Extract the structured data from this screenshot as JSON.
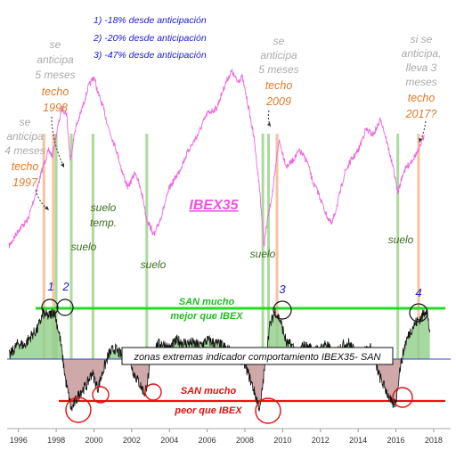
{
  "chart_data": {
    "type": "line",
    "x_axis": {
      "ticks": [
        "1996",
        "1998",
        "2000",
        "2002",
        "2004",
        "2006",
        "2008",
        "2010",
        "2012",
        "2014",
        "2016",
        "2018"
      ],
      "range": [
        1995.4,
        2018.9
      ]
    },
    "notes": [
      "1) -18% desde anticipación",
      "2) -20% desde anticipación",
      "3) -47% desde anticipación"
    ],
    "index_label": "IBEX35",
    "series": [
      {
        "name": "IBEX35",
        "color": "#ee66dd",
        "x": [
          1995.5,
          1996.0,
          1996.5,
          1997.0,
          1997.3,
          1997.6,
          1997.8,
          1998.0,
          1998.3,
          1998.55,
          1998.75,
          1999.0,
          1999.3,
          1999.7,
          2000.0,
          2000.2,
          2000.5,
          2000.8,
          2001.2,
          2001.5,
          2001.8,
          2002.2,
          2002.6,
          2002.8,
          2003.2,
          2003.6,
          2004.0,
          2004.5,
          2005.0,
          2005.5,
          2006.0,
          2006.5,
          2007.0,
          2007.3,
          2007.6,
          2007.85,
          2008.2,
          2008.5,
          2008.8,
          2009.0,
          2009.2,
          2009.5,
          2009.8,
          2010.2,
          2010.5,
          2010.9,
          2011.3,
          2011.6,
          2011.9,
          2012.3,
          2012.6,
          2012.9,
          2013.3,
          2013.6,
          2014.0,
          2014.4,
          2014.8,
          2015.2,
          2015.5,
          2015.9,
          2016.1,
          2016.4,
          2016.8,
          2017.2,
          2017.5
        ],
        "y": [
          3.6,
          3.3,
          3.1,
          2.5,
          2.1,
          1.8,
          1.9,
          1.5,
          1.0,
          1.1,
          2.0,
          1.4,
          1.1,
          0.6,
          0.4,
          0.7,
          1.0,
          1.4,
          1.8,
          2.2,
          2.5,
          2.2,
          2.7,
          3.1,
          3.4,
          3.0,
          2.5,
          2.2,
          1.8,
          1.5,
          1.1,
          1.0,
          0.5,
          0.3,
          0.5,
          0.4,
          1.0,
          1.6,
          2.6,
          3.6,
          3.1,
          2.5,
          1.6,
          2.1,
          2.0,
          1.8,
          2.0,
          2.4,
          2.6,
          3.0,
          3.2,
          2.8,
          2.2,
          2.0,
          1.8,
          1.4,
          1.5,
          1.2,
          1.6,
          2.2,
          2.6,
          2.2,
          2.0,
          1.8,
          1.5
        ]
      },
      {
        "name": "indicador comportamiento IBEX35- SAN",
        "color": "#111111",
        "x": [
          1995.5,
          1996.0,
          1996.3,
          1996.7,
          1997.0,
          1997.3,
          1997.6,
          1997.9,
          1998.2,
          1998.5,
          1998.8,
          1999.0,
          1999.3,
          1999.6,
          1999.9,
          2000.2,
          2000.5,
          2000.8,
          2001.1,
          2001.5,
          2001.8,
          2002.1,
          2002.4,
          2002.7,
          2003.0,
          2003.3,
          2003.6,
          2004.0,
          2004.4,
          2004.8,
          2005.2,
          2005.6,
          2006.0,
          2006.4,
          2006.8,
          2007.2,
          2007.6,
          2008.0,
          2008.4,
          2008.8,
          2009.0,
          2009.3,
          2009.6,
          2009.9,
          2010.2,
          2010.5,
          2010.8,
          2011.1,
          2011.5,
          2011.9,
          2012.3,
          2012.7,
          2013.1,
          2013.5,
          2013.9,
          2014.3,
          2014.7,
          2015.1,
          2015.5,
          2015.8,
          2016.0,
          2016.2,
          2016.5,
          2016.8,
          2017.1,
          2017.4,
          2017.6,
          2017.8
        ],
        "y": [
          0.05,
          0.3,
          0.25,
          0.45,
          0.55,
          0.85,
          0.8,
          0.9,
          0.4,
          -0.4,
          -0.95,
          -0.8,
          -0.6,
          -0.5,
          -0.25,
          -0.55,
          -0.2,
          0.1,
          0.2,
          0.05,
          0.1,
          -0.25,
          -0.45,
          -0.65,
          -0.1,
          0.25,
          0.3,
          0.2,
          0.35,
          0.3,
          0.3,
          0.25,
          0.35,
          0.3,
          0.25,
          0.15,
          0.1,
          -0.1,
          -0.5,
          -0.95,
          -0.3,
          0.6,
          0.9,
          0.7,
          0.3,
          0.25,
          0.1,
          0.25,
          0.2,
          0.15,
          0.3,
          0.05,
          0.25,
          0.3,
          0.1,
          0.15,
          0.2,
          -0.3,
          -0.6,
          -0.85,
          -0.8,
          -0.2,
          0.3,
          0.55,
          0.7,
          0.8,
          0.95,
          0.5
        ]
      }
    ],
    "thresholds": [
      {
        "name": "SAN mucho mejor que IBEX",
        "value": 0.78,
        "color": "#22dd22"
      },
      {
        "name": "SAN mucho peor que IBEX",
        "value": -0.78,
        "color": "#ee1111"
      }
    ],
    "zero_line_color": "#3344cc",
    "zone_label": "zonas extremas indicador comportamiento IBEX35- SAN",
    "vertical_markers": [
      {
        "x": 1997.35,
        "color": "#f4b98f"
      },
      {
        "x": 1997.85,
        "color": "#f4b98f"
      },
      {
        "x": 1998.0,
        "color": "#9ad68a"
      },
      {
        "x": 1998.8,
        "color": "#9ad68a"
      },
      {
        "x": 1999.95,
        "color": "#9ad68a"
      },
      {
        "x": 2002.8,
        "color": "#9ad68a"
      },
      {
        "x": 2008.95,
        "color": "#9ad68a"
      },
      {
        "x": 2009.25,
        "color": "#9ad68a"
      },
      {
        "x": 2009.7,
        "color": "#f4b98f"
      },
      {
        "x": 2016.1,
        "color": "#9ad68a"
      },
      {
        "x": 2017.2,
        "color": "#f4b98f"
      }
    ],
    "annotations": {
      "s1": {
        "l1": "se",
        "l2": "anticipa",
        "l3": "4 meses",
        "l4": "techo",
        "l5": "1997"
      },
      "s2": {
        "l1": "se",
        "l2": "anticipa",
        "l3": "5 meses",
        "l4": "techo",
        "l5": "1998"
      },
      "s3": {
        "l1": "se",
        "l2": "anticipa",
        "l3": "5 meses",
        "l4": "techo",
        "l5": "2009"
      },
      "s4": {
        "l1": "si se",
        "l2": "anticipa,",
        "l3": "lleva 3",
        "l4": "meses",
        "l5": "techo",
        "l6": "2017?"
      },
      "suelo_1": "suelo",
      "suelo_temp_1": "suelo",
      "suelo_temp_2": "temp.",
      "suelo_2": "suelo",
      "suelo_3": "suelo",
      "suelo_4": "suelo",
      "n1": "1",
      "n2": "2",
      "n3": "3",
      "n4": "4",
      "better_1": "SAN mucho",
      "better_2": "mejor que IBEX",
      "worse_1": "SAN mucho",
      "worse_2": "peor que IBEX"
    }
  }
}
